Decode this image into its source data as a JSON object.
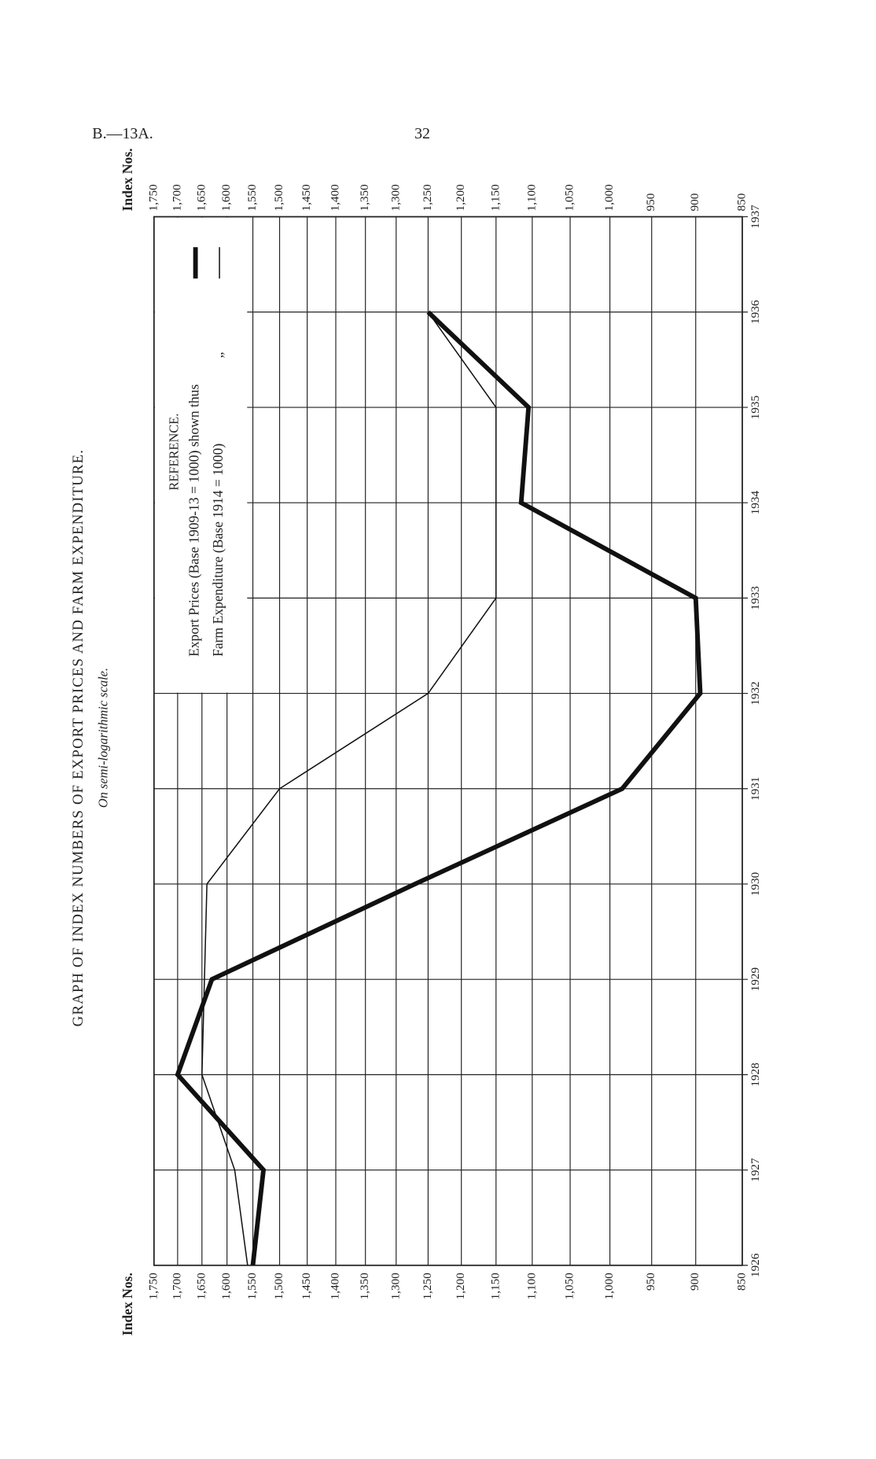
{
  "page": {
    "header": "B.—13A.",
    "page_number": "32"
  },
  "chart_data": {
    "type": "line",
    "title": "GRAPH OF INDEX NUMBERS OF EXPORT PRICES AND FARM EXPENDITURE.",
    "subtitle": "On semi-logarithmic scale.",
    "y_label": "Index Nos.",
    "legend_title": "REFERENCE.",
    "ditto": "„",
    "x": [
      1926,
      1927,
      1928,
      1929,
      1930,
      1931,
      1932,
      1933,
      1934,
      1935,
      1936
    ],
    "xlim": [
      1926,
      1937
    ],
    "xticks": [
      1926,
      1927,
      1928,
      1929,
      1930,
      1931,
      1932,
      1933,
      1934,
      1935,
      1936,
      1937
    ],
    "ylim": [
      850,
      1750
    ],
    "log_scale": true,
    "grid": true,
    "yticks": [
      {
        "value": 1750,
        "label": "1,750"
      },
      {
        "value": 1700,
        "label": "1,700"
      },
      {
        "value": 1650,
        "label": "1,650"
      },
      {
        "value": 1600,
        "label": "1,600"
      },
      {
        "value": 1550,
        "label": "1,550"
      },
      {
        "value": 1500,
        "label": "1,500"
      },
      {
        "value": 1450,
        "label": "1,450"
      },
      {
        "value": 1400,
        "label": "1,400"
      },
      {
        "value": 1350,
        "label": "1,350"
      },
      {
        "value": 1300,
        "label": "1,300"
      },
      {
        "value": 1250,
        "label": "1,250"
      },
      {
        "value": 1200,
        "label": "1,200"
      },
      {
        "value": 1150,
        "label": "1,150"
      },
      {
        "value": 1100,
        "label": "1,100"
      },
      {
        "value": 1050,
        "label": "1,050"
      },
      {
        "value": 1000,
        "label": "1,000"
      },
      950,
      900,
      850
    ],
    "series": [
      {
        "name": "Export Prices (Base 1909-13 = 1000) shown thus",
        "color": "#111111",
        "width": 5,
        "values": [
          1550,
          1530,
          1700,
          1630,
          1270,
          985,
          895,
          900,
          1115,
          1105,
          1250
        ]
      },
      {
        "name": "Farm Expenditure (Base 1914 = 1000)",
        "color": "#111111",
        "width": 1.3,
        "values": [
          1560,
          1585,
          1650,
          1645,
          1640,
          1500,
          1250,
          1150,
          1150,
          1150,
          1250
        ]
      }
    ]
  }
}
